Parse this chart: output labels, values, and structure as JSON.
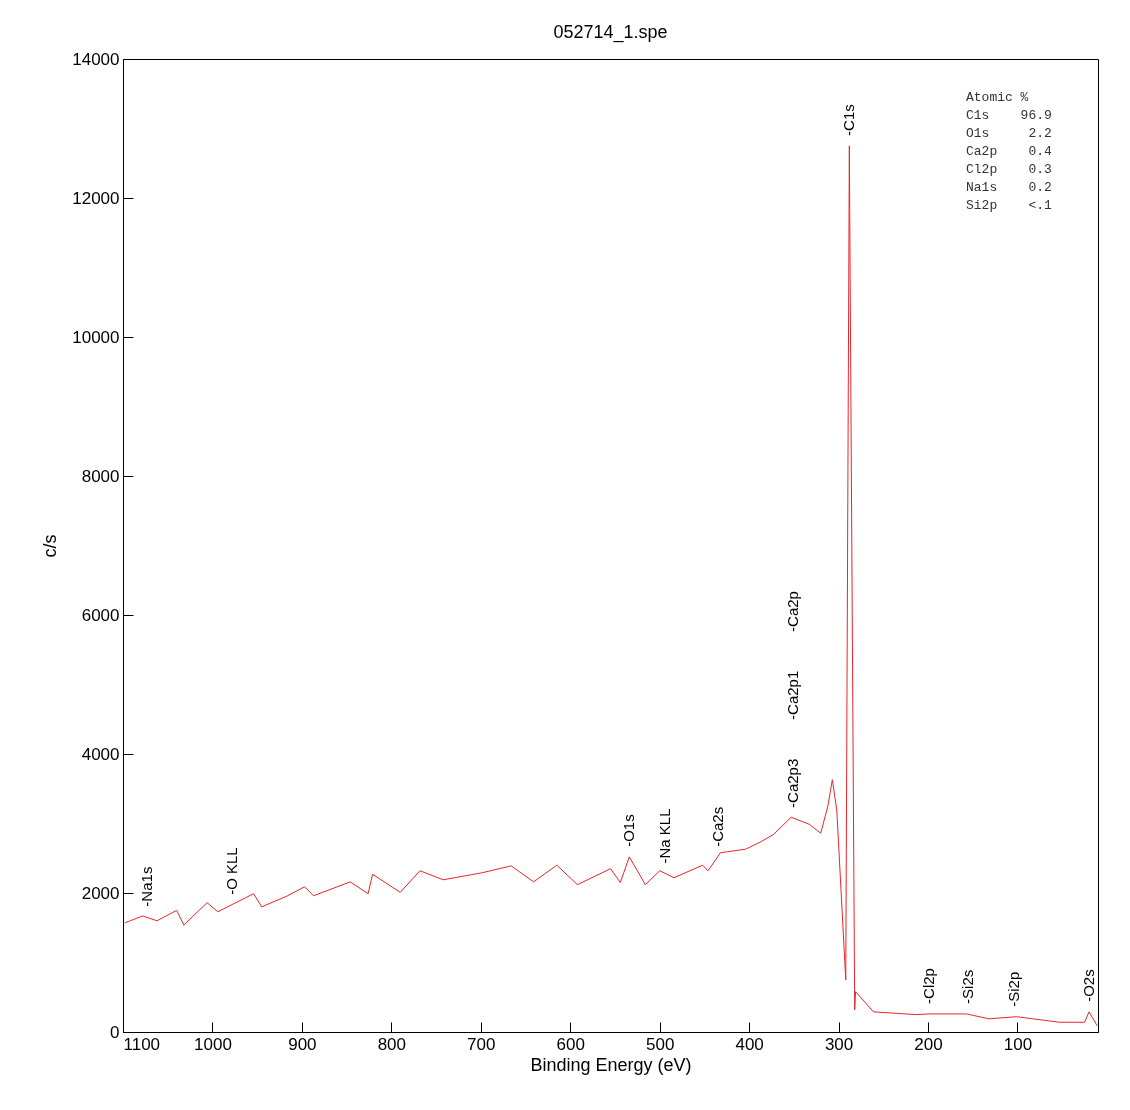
{
  "chart_data": {
    "type": "line",
    "title": "052714_1.spe",
    "xlabel": "Binding Energy (eV)",
    "ylabel": "c/s",
    "xlim": [
      1100,
      10
    ],
    "xticks": [
      1100,
      1000,
      900,
      800,
      700,
      600,
      500,
      400,
      300,
      200,
      100
    ],
    "ylim": [
      0,
      14000
    ],
    "yticks": [
      0,
      2000,
      4000,
      6000,
      8000,
      10000,
      12000,
      14000
    ],
    "grid": false,
    "line_style": "solid",
    "x": [
      1098,
      1078,
      1062,
      1040,
      1032,
      1006,
      994,
      954,
      945,
      916,
      897,
      887,
      846,
      826,
      821,
      790,
      768,
      742,
      699,
      666,
      641,
      615,
      592,
      555,
      544,
      534,
      516,
      500,
      484,
      452,
      446,
      432,
      404,
      388,
      373,
      353,
      333,
      320,
      312,
      307,
      302,
      292,
      288,
      282,
      281,
      261,
      213,
      199,
      157,
      132,
      101,
      53,
      25,
      20,
      11
    ],
    "series": [
      {
        "color": "#e8262a",
        "values": [
          1570,
          1670,
          1600,
          1750,
          1540,
          1860,
          1730,
          1990,
          1800,
          1960,
          2090,
          1960,
          2160,
          1990,
          2270,
          2010,
          2320,
          2190,
          2290,
          2390,
          2160,
          2400,
          2120,
          2350,
          2150,
          2520,
          2120,
          2320,
          2220,
          2400,
          2320,
          2580,
          2630,
          2730,
          2840,
          3090,
          2990,
          2860,
          3250,
          3630,
          3190,
          750,
          12750,
          320,
          580,
          290,
          250,
          260,
          260,
          190,
          220,
          140,
          140,
          290,
          90
        ]
      }
    ],
    "annotations": [
      {
        "text": "-Na1s",
        "x": 1073,
        "y": 1660
      },
      {
        "text": "-O KLL",
        "x": 978,
        "y": 1830
      },
      {
        "text": "-O1s",
        "x": 534,
        "y": 2520
      },
      {
        "text": "-Na KLL",
        "x": 494,
        "y": 2280
      },
      {
        "text": "-Ca2s",
        "x": 435,
        "y": 2520
      },
      {
        "text": "-Ca2p3",
        "x": 351,
        "y": 3080
      },
      "-Ca2p1",
      "-Ca2p",
      {
        "text": "-C1s",
        "x": 288,
        "y": 12750
      },
      {
        "text": "-Cl2p",
        "x": 199,
        "y": 260
      },
      {
        "text": "-Si2s",
        "x": 155,
        "y": 260
      },
      {
        "text": "-Si2p",
        "x": 104,
        "y": 220
      },
      {
        "text": "-O2s",
        "x": 20,
        "y": 290
      },
      "Atomic %",
      "C1s    96.9",
      "O1s     2.2",
      "Ca2p    0.4",
      "Cl2p    0.3",
      "Na1s    0.2",
      "Si2p    <.1"
    ]
  }
}
